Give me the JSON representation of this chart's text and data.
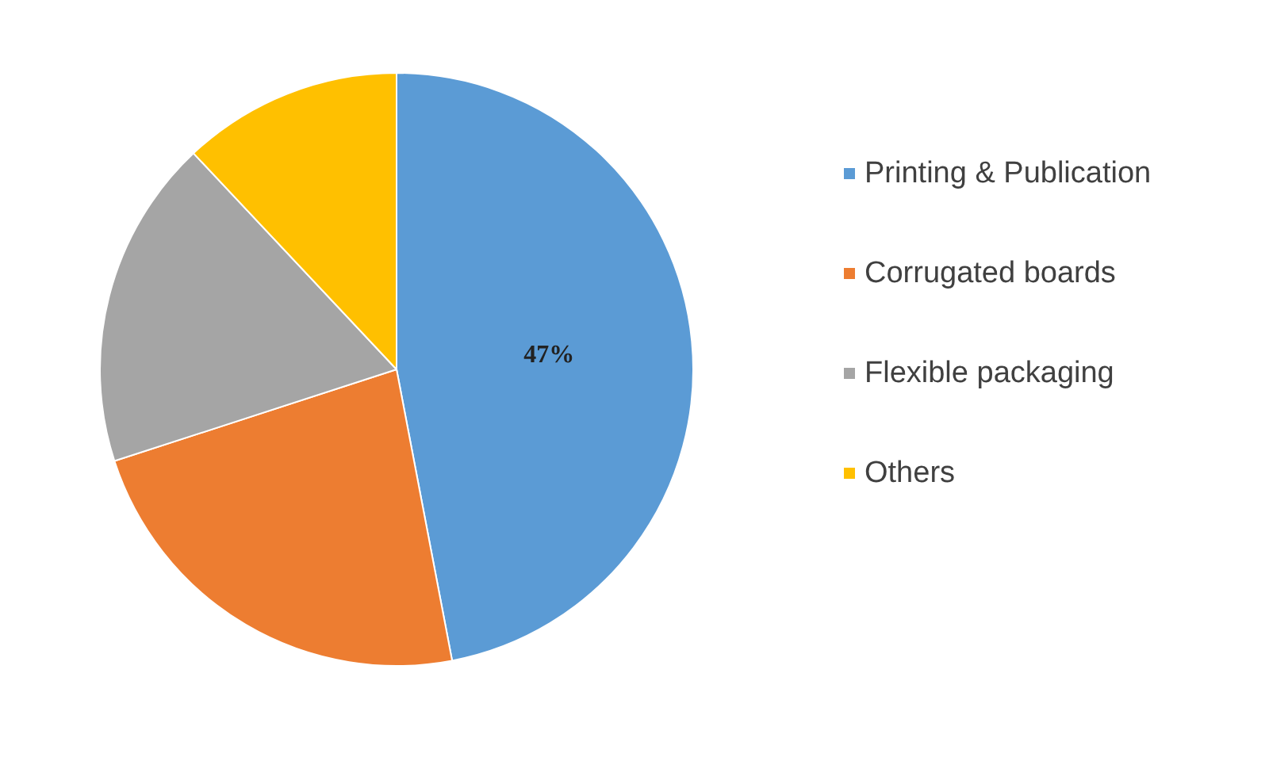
{
  "chart_data": {
    "type": "pie",
    "categories": [
      "Printing & Publication",
      "Corrugated boards",
      "Flexible packaging",
      "Others"
    ],
    "values": [
      47,
      23,
      18,
      12
    ],
    "colors": [
      "#5b9bd5",
      "#ed7d31",
      "#a5a5a5",
      "#ffc000"
    ],
    "value_labels": [
      "47%",
      null,
      null,
      null
    ],
    "legend": "right"
  }
}
